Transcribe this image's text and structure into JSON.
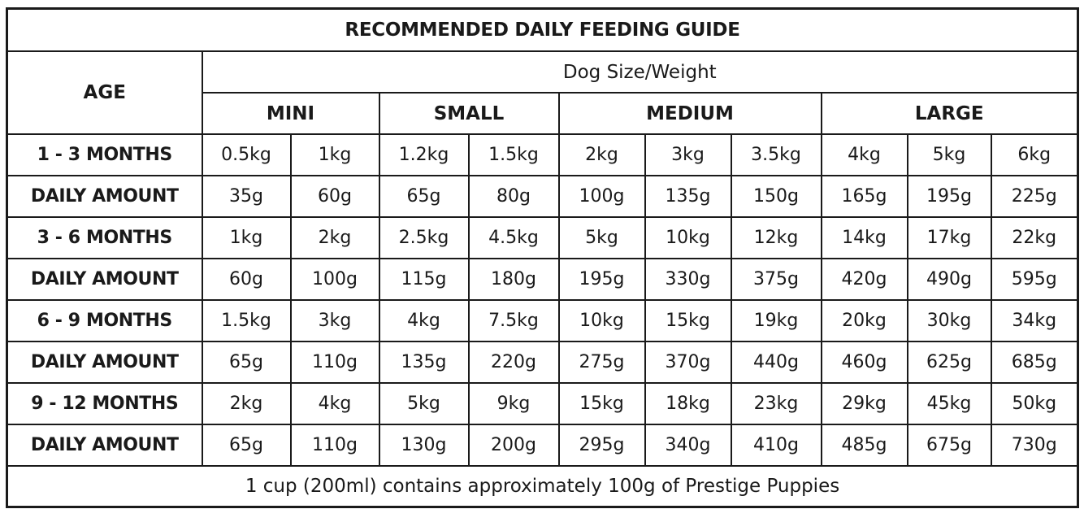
{
  "title": "RECOMMENDED DAILY FEEDING GUIDE",
  "age_header": "AGE",
  "size_header": "Dog Size/Weight",
  "categories": [
    "MINI",
    "SMALL",
    "MEDIUM",
    "LARGE"
  ],
  "rows": [
    {
      "label": "1 - 3 MONTHS",
      "values": [
        "0.5kg",
        "1kg",
        "1.2kg",
        "1.5kg",
        "2kg",
        "3kg",
        "3.5kg",
        "4kg",
        "5kg",
        "6kg"
      ]
    },
    {
      "label": "DAILY AMOUNT",
      "values": [
        "35g",
        "60g",
        "65g",
        "80g",
        "100g",
        "135g",
        "150g",
        "165g",
        "195g",
        "225g"
      ]
    },
    {
      "label": "3 - 6 MONTHS",
      "values": [
        "1kg",
        "2kg",
        "2.5kg",
        "4.5kg",
        "5kg",
        "10kg",
        "12kg",
        "14kg",
        "17kg",
        "22kg"
      ]
    },
    {
      "label": "DAILY AMOUNT",
      "values": [
        "60g",
        "100g",
        "115g",
        "180g",
        "195g",
        "330g",
        "375g",
        "420g",
        "490g",
        "595g"
      ]
    },
    {
      "label": "6 - 9 MONTHS",
      "values": [
        "1.5kg",
        "3kg",
        "4kg",
        "7.5kg",
        "10kg",
        "15kg",
        "19kg",
        "20kg",
        "30kg",
        "34kg"
      ]
    },
    {
      "label": "DAILY AMOUNT",
      "values": [
        "65g",
        "110g",
        "135g",
        "220g",
        "275g",
        "370g",
        "440g",
        "460g",
        "625g",
        "685g"
      ]
    },
    {
      "label": "9 - 12 MONTHS",
      "values": [
        "2kg",
        "4kg",
        "5kg",
        "9kg",
        "15kg",
        "18kg",
        "23kg",
        "29kg",
        "45kg",
        "50kg"
      ]
    },
    {
      "label": "DAILY AMOUNT",
      "values": [
        "65g",
        "110g",
        "130g",
        "200g",
        "295g",
        "340g",
        "410g",
        "485g",
        "675g",
        "730g"
      ]
    }
  ],
  "footer": "1 cup (200ml) contains approximately 100g of Prestige Puppies"
}
